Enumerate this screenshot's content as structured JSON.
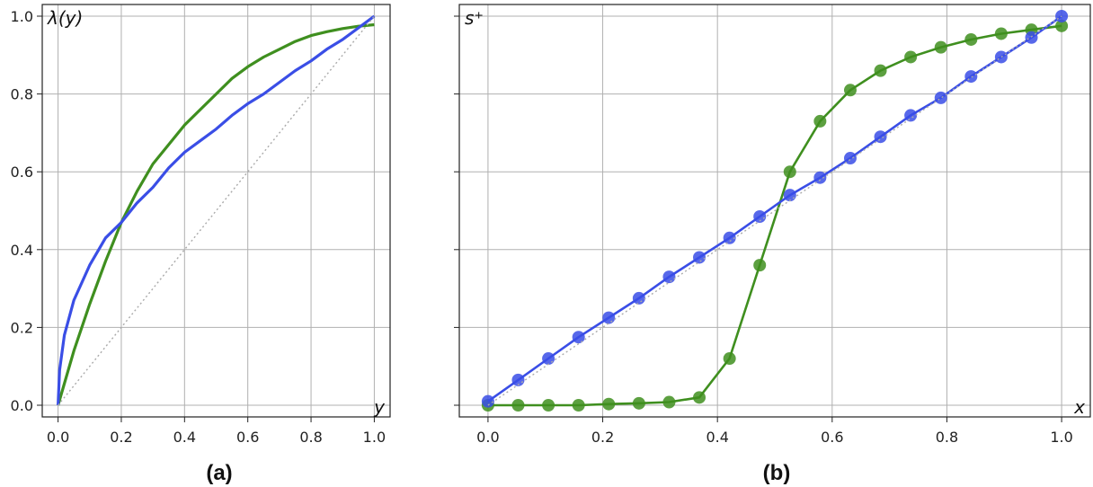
{
  "chart_data": [
    {
      "panel": "(a)",
      "type": "line",
      "xlabel": "y",
      "ylabel": "λ(y)",
      "xlim": [
        -0.05,
        1.05
      ],
      "ylim": [
        -0.03,
        1.03
      ],
      "xticks": [
        "0.0",
        "0.2",
        "0.4",
        "0.6",
        "0.8",
        "1.0"
      ],
      "yticks": [
        "0.0",
        "0.2",
        "0.4",
        "0.6",
        "0.8",
        "1.0"
      ],
      "grid": true,
      "series": [
        {
          "color": "#3f8f1f",
          "x": [
            0,
            0.05,
            0.1,
            0.15,
            0.2,
            0.25,
            0.3,
            0.35,
            0.4,
            0.45,
            0.5,
            0.55,
            0.6,
            0.65,
            0.7,
            0.75,
            0.8,
            0.85,
            0.9,
            0.95,
            1.0
          ],
          "values": [
            0.0,
            0.14,
            0.26,
            0.37,
            0.47,
            0.55,
            0.62,
            0.67,
            0.72,
            0.76,
            0.8,
            0.84,
            0.87,
            0.895,
            0.915,
            0.935,
            0.95,
            0.96,
            0.968,
            0.974,
            0.978
          ]
        },
        {
          "color": "#3a4ee6",
          "x": [
            0,
            0.005,
            0.02,
            0.05,
            0.1,
            0.15,
            0.2,
            0.25,
            0.3,
            0.35,
            0.4,
            0.45,
            0.5,
            0.55,
            0.6,
            0.65,
            0.7,
            0.75,
            0.8,
            0.85,
            0.9,
            0.95,
            1.0
          ],
          "values": [
            0.0,
            0.09,
            0.18,
            0.27,
            0.36,
            0.43,
            0.47,
            0.52,
            0.56,
            0.61,
            0.65,
            0.68,
            0.71,
            0.745,
            0.775,
            0.8,
            0.83,
            0.86,
            0.885,
            0.915,
            0.94,
            0.97,
            1.0
          ]
        },
        {
          "color": "#aaaaaa",
          "dashed": true,
          "x": [
            0,
            1
          ],
          "values": [
            0,
            1
          ]
        }
      ]
    },
    {
      "panel": "(b)",
      "type": "scatter",
      "xlabel": "x",
      "ylabel": "s⁺",
      "xlim": [
        -0.05,
        1.05
      ],
      "ylim": [
        -0.03,
        1.03
      ],
      "xticks": [
        "0.0",
        "0.2",
        "0.4",
        "0.6",
        "0.8",
        "1.0"
      ],
      "grid": true,
      "series": [
        {
          "color": "#3f8f1f",
          "x": [
            0,
            0.0526,
            0.1053,
            0.1579,
            0.2105,
            0.2632,
            0.3158,
            0.3684,
            0.4211,
            0.4737,
            0.5263,
            0.5789,
            0.6316,
            0.6842,
            0.7368,
            0.7895,
            0.8421,
            0.8947,
            0.9474,
            1.0
          ],
          "values": [
            0.0,
            0.0,
            0.0,
            0.0,
            0.003,
            0.005,
            0.008,
            0.02,
            0.12,
            0.36,
            0.6,
            0.73,
            0.81,
            0.86,
            0.895,
            0.92,
            0.94,
            0.955,
            0.965,
            0.975
          ]
        },
        {
          "color": "#3a4ee6",
          "x": [
            0,
            0.0526,
            0.1053,
            0.1579,
            0.2105,
            0.2632,
            0.3158,
            0.3684,
            0.4211,
            0.4737,
            0.5263,
            0.5789,
            0.6316,
            0.6842,
            0.7368,
            0.7895,
            0.8421,
            0.8947,
            0.9474,
            1.0
          ],
          "values": [
            0.01,
            0.065,
            0.12,
            0.175,
            0.225,
            0.275,
            0.33,
            0.38,
            0.43,
            0.485,
            0.54,
            0.585,
            0.635,
            0.69,
            0.745,
            0.79,
            0.845,
            0.895,
            0.945,
            1.0
          ]
        },
        {
          "color": "#aaaaaa",
          "dashed": true,
          "x": [
            0,
            1
          ],
          "values": [
            0,
            1
          ]
        }
      ]
    }
  ]
}
